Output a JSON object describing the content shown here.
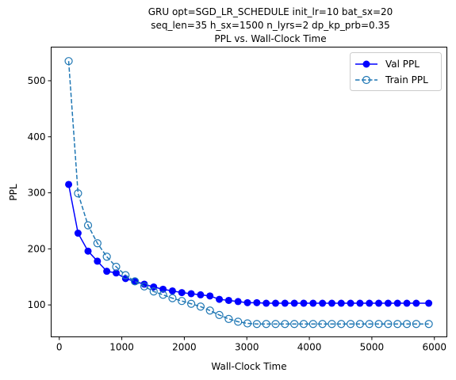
{
  "colors": {
    "val": "#0000ff",
    "train": "#1f77b4"
  },
  "chart_data": {
    "type": "line",
    "title_lines": [
      "GRU opt=SGD_LR_SCHEDULE init_lr=10 bat_sx=20",
      "seq_len=35 h_sx=1500 n_lyrs=2 dp_kp_prb=0.35",
      "PPL vs. Wall-Clock Time"
    ],
    "xlabel": "Wall-Clock Time",
    "ylabel": "PPL",
    "xlim": [
      -130,
      6200
    ],
    "ylim": [
      43,
      560
    ],
    "xticks": [
      0,
      1000,
      2000,
      3000,
      4000,
      5000,
      6000
    ],
    "yticks": [
      100,
      200,
      300,
      400,
      500
    ],
    "grid": false,
    "legend_position": "top-right",
    "x": [
      150,
      300,
      460,
      610,
      760,
      910,
      1060,
      1210,
      1360,
      1510,
      1660,
      1810,
      1960,
      2110,
      2260,
      2410,
      2560,
      2710,
      2860,
      3010,
      3160,
      3310,
      3460,
      3610,
      3760,
      3910,
      4060,
      4210,
      4360,
      4510,
      4660,
      4810,
      4960,
      5110,
      5260,
      5410,
      5560,
      5710,
      5910
    ],
    "series": [
      {
        "name": "Val PPL",
        "style": "solid-filled-circle",
        "values": [
          315,
          228,
          196,
          178,
          160,
          157,
          147,
          142,
          137,
          132,
          128,
          125,
          122,
          120,
          118,
          116,
          110,
          108,
          106,
          104,
          104,
          103,
          103,
          103,
          103,
          103,
          103,
          103,
          103,
          103,
          103,
          103,
          103,
          103,
          103,
          103,
          103,
          103,
          103
        ]
      },
      {
        "name": "Train PPL",
        "style": "dashed-open-circle",
        "values": [
          535,
          299,
          242,
          210,
          186,
          168,
          153,
          142,
          133,
          124,
          118,
          112,
          107,
          102,
          97,
          90,
          82,
          75,
          70,
          67,
          66,
          66,
          66,
          66,
          66,
          66,
          66,
          66,
          66,
          66,
          66,
          66,
          66,
          66,
          66,
          66,
          66,
          66,
          66
        ]
      }
    ]
  }
}
